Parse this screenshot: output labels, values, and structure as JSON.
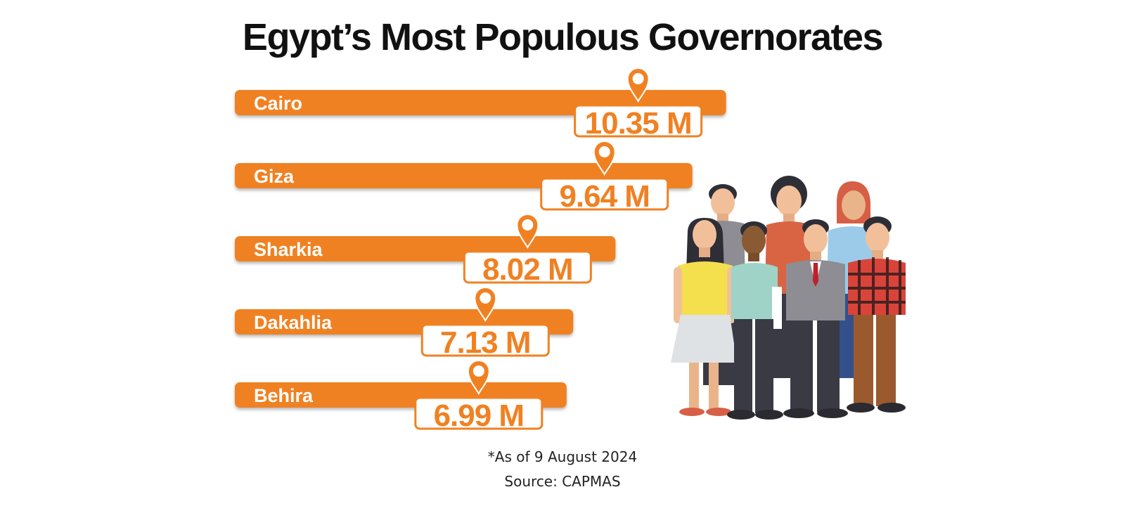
{
  "colors": {
    "accent": "#f08122",
    "text": "#111111",
    "badge_bg": "#ffffff"
  },
  "chart_data": {
    "type": "bar",
    "orientation": "horizontal",
    "title": "Egypt’s Most Populous Governorates",
    "categories": [
      "Cairo",
      "Giza",
      "Sharkia",
      "Dakahlia",
      "Behira"
    ],
    "values": [
      10.35,
      9.64,
      8.02,
      7.13,
      6.99
    ],
    "value_labels": [
      "10.35 M",
      "9.64 M",
      "8.02 M",
      "7.13 M",
      "6.99 M"
    ],
    "unit": "M",
    "grid": false,
    "legend": "none"
  },
  "notes": {
    "date": "*As of 9 August 2024",
    "source": "Source: CAPMAS"
  },
  "illustration": {
    "icon": "group-of-people-icon"
  }
}
